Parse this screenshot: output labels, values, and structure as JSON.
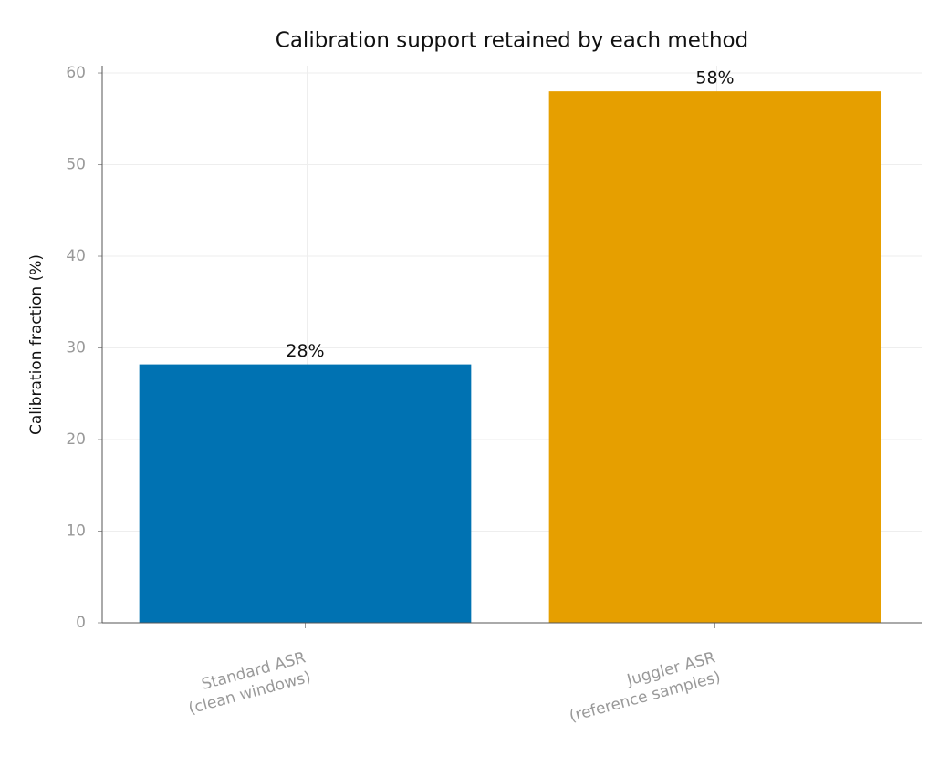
{
  "chart_data": {
    "type": "bar",
    "title": "Calibration support retained by each method",
    "ylabel": "Calibration fraction (%)",
    "categories": [
      "Standard ASR\n(clean windows)",
      "Juggler ASR\n(reference samples)"
    ],
    "values": [
      28.2,
      58
    ],
    "value_labels": [
      "28%",
      "58%"
    ],
    "colors": [
      "#0072b2",
      "#e69f00"
    ],
    "ylim": [
      0,
      60.8
    ],
    "yticks": [
      0,
      10,
      20,
      30,
      40,
      50,
      60
    ],
    "grid": true
  }
}
